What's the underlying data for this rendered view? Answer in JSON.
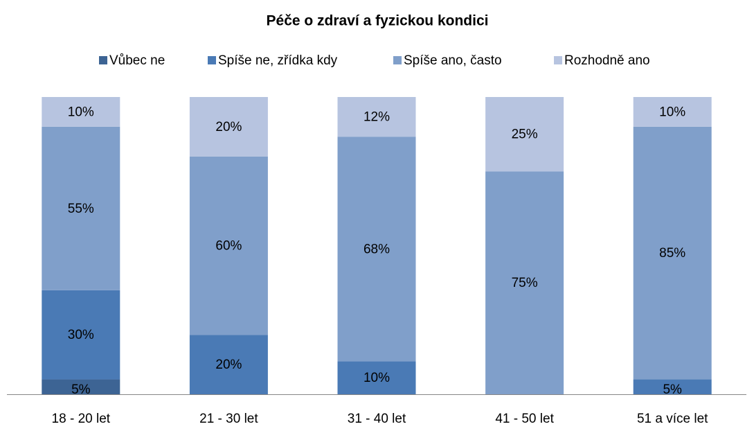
{
  "chart_data": {
    "type": "stacked_bar_100",
    "title": "Péče o zdraví a fyzickou kondici",
    "categories": [
      "18 - 20 let",
      "21 - 30 let",
      "31 - 40 let",
      "41 - 50 let",
      "51 a více let"
    ],
    "series": [
      {
        "name": "Vůbec ne",
        "color": "#3d6494",
        "values": [
          5,
          0,
          0,
          0,
          0
        ],
        "value_labels": [
          "5%",
          null,
          null,
          null,
          null
        ]
      },
      {
        "name": "Spíše ne, zřídka kdy",
        "color": "#4a7ab5",
        "values": [
          30,
          20,
          10,
          0,
          5
        ],
        "value_labels": [
          "30%",
          "20%",
          "10%",
          null,
          "5%"
        ]
      },
      {
        "name": "Spíše ano, často",
        "color": "#809fca",
        "values": [
          55,
          60,
          68,
          75,
          85
        ],
        "value_labels": [
          "55%",
          "60%",
          "68%",
          "75%",
          "85%"
        ]
      },
      {
        "name": "Rozhodně ano",
        "color": "#b7c4e0",
        "values": [
          10,
          20,
          12,
          25,
          10
        ],
        "value_labels": [
          "10%",
          "20%",
          "12%",
          "25%",
          "10%"
        ]
      }
    ],
    "legend": "top"
  }
}
